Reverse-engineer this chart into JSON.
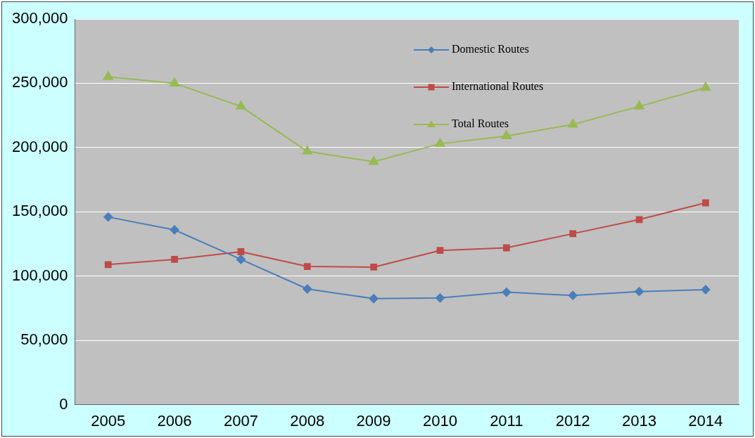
{
  "chart_data": {
    "type": "line",
    "categories": [
      "2005",
      "2006",
      "2007",
      "2008",
      "2009",
      "2010",
      "2011",
      "2012",
      "2013",
      "2014"
    ],
    "series": [
      {
        "name": "Domestic Routes",
        "color": "#4a7ebb",
        "marker": "diamond",
        "values": [
          146000,
          136000,
          113000,
          90000,
          82500,
          83000,
          87500,
          85000,
          88000,
          89500
        ]
      },
      {
        "name": "International Routes",
        "color": "#be4b48",
        "marker": "square",
        "values": [
          109000,
          113000,
          119000,
          107500,
          107000,
          120000,
          122000,
          133000,
          144000,
          157000
        ]
      },
      {
        "name": "Total Routes",
        "color": "#98b954",
        "marker": "triangle",
        "values": [
          255000,
          250000,
          232000,
          197000,
          189000,
          203000,
          209000,
          218000,
          232000,
          246500
        ]
      }
    ],
    "ylim": [
      0,
      300000
    ],
    "yticks": [
      {
        "value": 0,
        "label": "0"
      },
      {
        "value": 50000,
        "label": "50,000"
      },
      {
        "value": 100000,
        "label": "100,000"
      },
      {
        "value": 150000,
        "label": "150,000"
      },
      {
        "value": 200000,
        "label": "200,000"
      },
      {
        "value": 250000,
        "label": "250,000"
      },
      {
        "value": 300000,
        "label": "300,000"
      }
    ],
    "grid": "y",
    "legend": "top",
    "line_style": "solid"
  }
}
